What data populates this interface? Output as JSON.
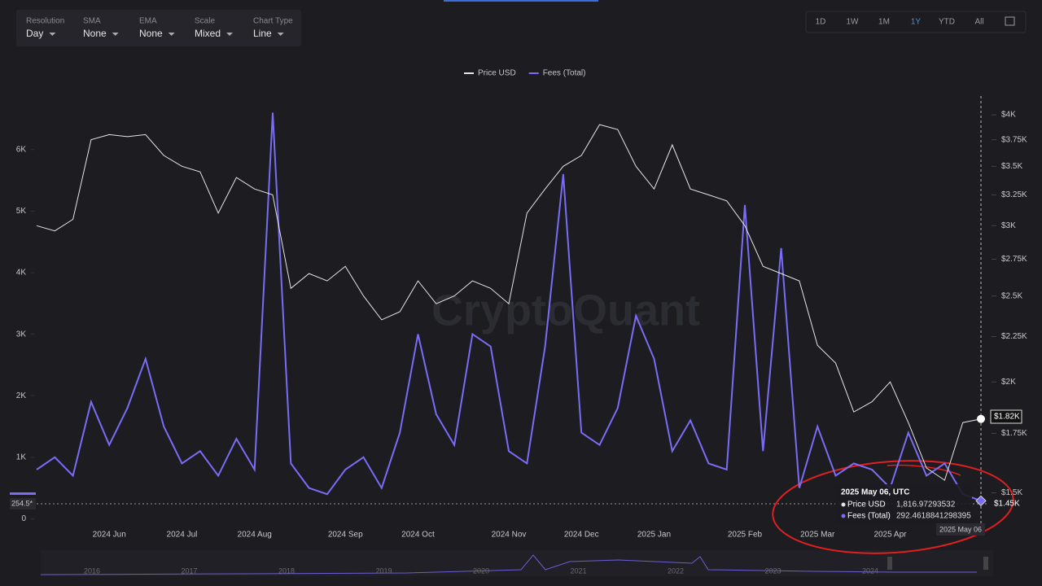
{
  "controls": [
    {
      "label": "Resolution",
      "value": "Day"
    },
    {
      "label": "SMA",
      "value": "None"
    },
    {
      "label": "EMA",
      "value": "None"
    },
    {
      "label": "Scale",
      "value": "Mixed"
    },
    {
      "label": "Chart Type",
      "value": "Line"
    }
  ],
  "ranges": [
    "1D",
    "1W",
    "1M",
    "1Y",
    "YTD",
    "All"
  ],
  "active_range": "1Y",
  "watermark": "CryptoQuant",
  "navigator_years": [
    "2016",
    "2017",
    "2018",
    "2019",
    "2020",
    "2021",
    "2022",
    "2023",
    "2024"
  ],
  "chart_data": {
    "type": "line",
    "categories": [
      null,
      null,
      null,
      null,
      "2024 Jun",
      null,
      null,
      null,
      "2024 Jul",
      null,
      null,
      null,
      "2024 Aug",
      null,
      null,
      null,
      null,
      "2024 Sep",
      null,
      null,
      null,
      "2024 Oct",
      null,
      null,
      null,
      null,
      "2024 Nov",
      null,
      null,
      null,
      "2024 Dec",
      null,
      null,
      null,
      "2025 Jan",
      null,
      null,
      null,
      null,
      "2025 Feb",
      null,
      null,
      null,
      "2025 Mar",
      null,
      null,
      null,
      "2025 Apr",
      null,
      null,
      null,
      null,
      null
    ],
    "series": [
      {
        "name": "Price USD",
        "color": "#e6e6e6",
        "axis": "y2",
        "values": [
          3000,
          2960,
          3050,
          3750,
          3800,
          3780,
          3800,
          3600,
          3500,
          3450,
          3100,
          3400,
          3300,
          3250,
          2550,
          2650,
          2600,
          2700,
          2500,
          2350,
          2400,
          2600,
          2450,
          2500,
          2600,
          2550,
          2450,
          3100,
          3300,
          3500,
          3600,
          3900,
          3850,
          3500,
          3300,
          3700,
          3300,
          3250,
          3200,
          3000,
          2700,
          2650,
          2600,
          2200,
          2100,
          1850,
          1900,
          2000,
          1800,
          1600,
          1550,
          1800,
          1816.97293532
        ]
      },
      {
        "name": "Fees (Total)",
        "color": "#7b6cf6",
        "values": [
          800,
          1000,
          700,
          1900,
          1200,
          1800,
          2600,
          1500,
          900,
          1100,
          700,
          1300,
          800,
          6600,
          900,
          500,
          400,
          800,
          1000,
          500,
          1400,
          3000,
          1700,
          1200,
          3000,
          2800,
          1100,
          900,
          2800,
          5600,
          1400,
          1200,
          1800,
          3300,
          2600,
          1100,
          1600,
          900,
          800,
          5100,
          1100,
          4400,
          500,
          1500,
          700,
          900,
          800,
          500,
          1400,
          700,
          900,
          400,
          292.4618841298395
        ]
      }
    ],
    "ylim": [
      -100,
      6870
    ],
    "yticks": [
      0,
      {
        "value": 1000,
        "label": "1K"
      },
      {
        "value": 2000,
        "label": "2K"
      },
      {
        "value": 3000,
        "label": "3K"
      },
      {
        "value": 4000,
        "label": "4K"
      },
      {
        "value": 5000,
        "label": "5K"
      },
      {
        "value": 6000,
        "label": "6K"
      }
    ],
    "y2lim": [
      1380,
      4200
    ],
    "y2scale": "log",
    "y2ticks": [
      {
        "value": 1500,
        "label": "$1.5K"
      },
      {
        "value": 1750,
        "label": "$1.75K"
      },
      {
        "value": 2000,
        "label": "$2K"
      },
      {
        "value": 2250,
        "label": "$2.25K"
      },
      {
        "value": 2500,
        "label": "$2.5K"
      },
      {
        "value": 2750,
        "label": "$2.75K"
      },
      {
        "value": 3000,
        "label": "$3K"
      },
      {
        "value": 3250,
        "label": "$3.25K"
      },
      {
        "value": 3500,
        "label": "$3.5K"
      },
      {
        "value": 3750,
        "label": "$3.75K"
      },
      {
        "value": 4000,
        "label": "$4K"
      }
    ],
    "legend": "top",
    "markers": {
      "fees": "254.5*",
      "price": "$1.82K",
      "price2": "$1.45K"
    },
    "tooltip": {
      "title": "2025 May 06, UTC",
      "rows": [
        {
          "name": "Price USD",
          "value": "1,816.97293532"
        },
        {
          "name": "Fees (Total)",
          "value": "292.4618841298395"
        }
      ],
      "date": "2025 May 06"
    }
  }
}
